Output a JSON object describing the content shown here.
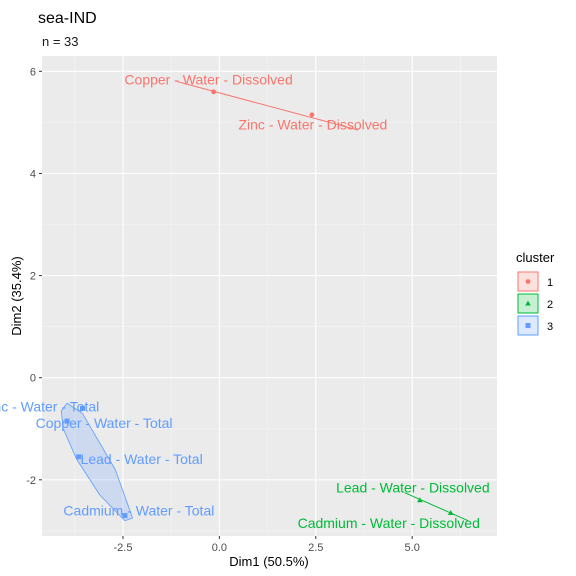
{
  "chart_data": {
    "type": "scatter",
    "title": "sea-IND",
    "subtitle": "n = 33",
    "xlabel": "Dim1 (50.5%)",
    "ylabel": "Dim2 (35.4%)",
    "xlim": [
      -4.6,
      7.2
    ],
    "ylim": [
      -3.1,
      6.3
    ],
    "xticks": [
      -2.5,
      0.0,
      2.5,
      5.0
    ],
    "xtick_labels": [
      "-2.5",
      "0.0",
      "2.5",
      "5.0"
    ],
    "yticks": [
      -2,
      0,
      2,
      4,
      6
    ],
    "ytick_labels": [
      "-2",
      "0",
      "2",
      "4",
      "6"
    ],
    "grid": true,
    "legend": {
      "title": "cluster",
      "position": "right",
      "entries": [
        "1",
        "2",
        "3"
      ]
    },
    "clusters": [
      {
        "name": "1",
        "color": "#F8766D",
        "fill": "#F8766D",
        "marker": "circle",
        "ellipse_boundary": [
          [
            -1.1,
            5.8
          ],
          [
            3.6,
            4.85
          ]
        ],
        "points": [
          {
            "label": "Copper - Water - Dissolved",
            "x": -0.15,
            "y": 5.6
          },
          {
            "label": "Zinc - Water - Dissolved",
            "x": 2.4,
            "y": 5.15
          }
        ]
      },
      {
        "name": "2",
        "color": "#00BA38",
        "fill": "#00BA38",
        "marker": "triangle",
        "ellipse_boundary": [
          [
            4.8,
            -2.25
          ],
          [
            6.45,
            -2.8
          ]
        ],
        "points": [
          {
            "label": "Lead - Water - Dissolved",
            "x": 5.2,
            "y": -2.4
          },
          {
            "label": "Cadmium - Water - Dissolved",
            "x": 6.0,
            "y": -2.65
          }
        ]
      },
      {
        "name": "3",
        "color": "#619CFF",
        "fill": "#619CFF",
        "marker": "square",
        "ellipse_boundary": [
          [
            -4.1,
            -0.65
          ],
          [
            -3.95,
            -0.5
          ],
          [
            -3.55,
            -0.7
          ],
          [
            -2.7,
            -1.8
          ],
          [
            -2.25,
            -2.75
          ],
          [
            -2.45,
            -2.8
          ],
          [
            -3.1,
            -2.3
          ],
          [
            -3.7,
            -1.6
          ],
          [
            -4.05,
            -1.0
          ]
        ],
        "points": [
          {
            "label": "Zinc - Water - Total",
            "x": -3.55,
            "y": -0.6
          },
          {
            "label": "Copper - Water - Total",
            "x": -3.95,
            "y": -0.85
          },
          {
            "label": "Lead - Water - Total",
            "x": -3.65,
            "y": -1.55
          },
          {
            "label": "Cadmium - Water - Total",
            "x": -2.45,
            "y": -2.7
          }
        ]
      }
    ]
  }
}
